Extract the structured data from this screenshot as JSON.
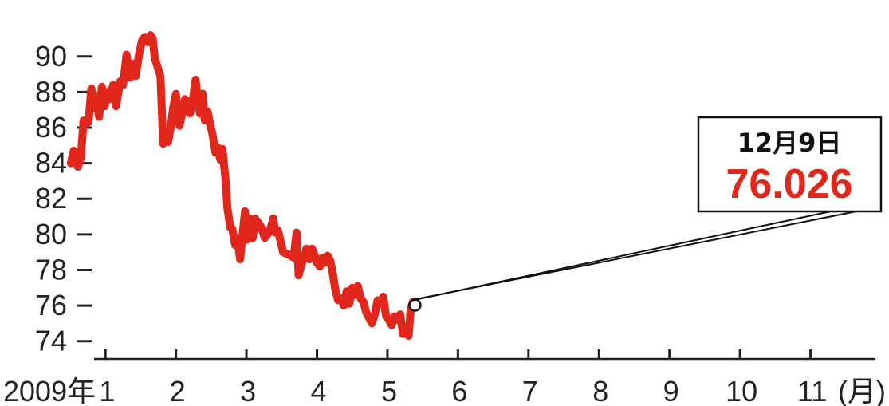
{
  "chart_data": {
    "type": "line",
    "title": "",
    "xlabel": "",
    "ylabel": "",
    "ylim": [
      73,
      92.5
    ],
    "y_ticks": [
      74,
      76,
      78,
      80,
      82,
      84,
      86,
      88,
      90
    ],
    "x_range": [
      0.5,
      12.0
    ],
    "x_ticks": [
      {
        "x": 1,
        "label": "1"
      },
      {
        "x": 2,
        "label": "2"
      },
      {
        "x": 3,
        "label": "3"
      },
      {
        "x": 4,
        "label": "4"
      },
      {
        "x": 5,
        "label": "5"
      },
      {
        "x": 6,
        "label": "6"
      },
      {
        "x": 7,
        "label": "7"
      },
      {
        "x": 8,
        "label": "8"
      },
      {
        "x": 9,
        "label": "9"
      },
      {
        "x": 10,
        "label": "10"
      },
      {
        "x": 11,
        "label": "11"
      }
    ],
    "year_label": "2009年",
    "unit_label": "(月)",
    "grid": false,
    "line_color": "#e1261c",
    "series": [
      {
        "points": [
          [
            0.51,
            84.0
          ],
          [
            0.55,
            84.7
          ],
          [
            0.58,
            84.3
          ],
          [
            0.61,
            83.8
          ],
          [
            0.65,
            84.3
          ],
          [
            0.69,
            86.4
          ],
          [
            0.76,
            86.3
          ],
          [
            0.8,
            88.2
          ],
          [
            0.84,
            87.1
          ],
          [
            0.87,
            87.8
          ],
          [
            0.91,
            86.6
          ],
          [
            0.95,
            88.3
          ],
          [
            0.99,
            87.2
          ],
          [
            1.02,
            88.0
          ],
          [
            1.06,
            87.6
          ],
          [
            1.11,
            88.4
          ],
          [
            1.15,
            87.2
          ],
          [
            1.21,
            88.6
          ],
          [
            1.25,
            88.4
          ],
          [
            1.3,
            90.1
          ],
          [
            1.35,
            88.8
          ],
          [
            1.4,
            89.6
          ],
          [
            1.43,
            88.9
          ],
          [
            1.48,
            90.2
          ],
          [
            1.52,
            90.9
          ],
          [
            1.56,
            91.1
          ],
          [
            1.6,
            90.8
          ],
          [
            1.64,
            91.2
          ],
          [
            1.67,
            91.0
          ],
          [
            1.7,
            89.9
          ],
          [
            1.74,
            89.4
          ],
          [
            1.78,
            88.9
          ],
          [
            1.82,
            85.1
          ],
          [
            1.86,
            85.6
          ],
          [
            1.89,
            85.2
          ],
          [
            1.93,
            86.1
          ],
          [
            1.96,
            87.1
          ],
          [
            2.0,
            87.9
          ],
          [
            2.05,
            86.1
          ],
          [
            2.09,
            86.8
          ],
          [
            2.13,
            87.6
          ],
          [
            2.17,
            87.4
          ],
          [
            2.2,
            86.8
          ],
          [
            2.24,
            87.6
          ],
          [
            2.28,
            88.7
          ],
          [
            2.31,
            87.6
          ],
          [
            2.34,
            86.8
          ],
          [
            2.38,
            87.9
          ],
          [
            2.41,
            86.4
          ],
          [
            2.45,
            86.9
          ],
          [
            2.48,
            86.3
          ],
          [
            2.52,
            85.6
          ],
          [
            2.56,
            84.6
          ],
          [
            2.59,
            84.9
          ],
          [
            2.63,
            84.2
          ],
          [
            2.66,
            84.8
          ],
          [
            2.7,
            83.2
          ],
          [
            2.73,
            81.5
          ],
          [
            2.77,
            80.4
          ],
          [
            2.8,
            80.3
          ],
          [
            2.84,
            79.4
          ],
          [
            2.87,
            79.8
          ],
          [
            2.91,
            78.6
          ],
          [
            2.94,
            79.8
          ],
          [
            2.98,
            81.3
          ],
          [
            3.01,
            79.7
          ],
          [
            3.05,
            80.9
          ],
          [
            3.09,
            79.8
          ],
          [
            3.12,
            80.9
          ],
          [
            3.16,
            80.7
          ],
          [
            3.21,
            80.4
          ],
          [
            3.26,
            79.8
          ],
          [
            3.3,
            80.0
          ],
          [
            3.34,
            80.3
          ],
          [
            3.38,
            80.9
          ],
          [
            3.41,
            80.1
          ],
          [
            3.45,
            80.2
          ],
          [
            3.49,
            79.5
          ],
          [
            3.52,
            79.0
          ],
          [
            3.58,
            78.9
          ],
          [
            3.63,
            78.8
          ],
          [
            3.67,
            78.7
          ],
          [
            3.71,
            80.1
          ],
          [
            3.74,
            77.7
          ],
          [
            3.78,
            78.3
          ],
          [
            3.82,
            78.7
          ],
          [
            3.85,
            79.2
          ],
          [
            3.89,
            78.6
          ],
          [
            3.93,
            79.2
          ],
          [
            3.96,
            78.9
          ],
          [
            4.0,
            78.4
          ],
          [
            4.04,
            78.2
          ],
          [
            4.08,
            78.7
          ],
          [
            4.11,
            78.4
          ],
          [
            4.15,
            78.8
          ],
          [
            4.19,
            78.5
          ],
          [
            4.22,
            77.9
          ],
          [
            4.26,
            76.9
          ],
          [
            4.3,
            76.3
          ],
          [
            4.34,
            76.4
          ],
          [
            4.38,
            76.0
          ],
          [
            4.42,
            76.8
          ],
          [
            4.46,
            76.1
          ],
          [
            4.5,
            77.0
          ],
          [
            4.54,
            76.6
          ],
          [
            4.58,
            77.1
          ],
          [
            4.62,
            76.4
          ],
          [
            4.66,
            76.2
          ],
          [
            4.7,
            75.6
          ],
          [
            4.74,
            75.3
          ],
          [
            4.78,
            75.0
          ],
          [
            4.82,
            75.5
          ],
          [
            4.86,
            76.3
          ],
          [
            4.9,
            76.1
          ],
          [
            4.94,
            76.5
          ],
          [
            4.98,
            75.4
          ],
          [
            5.02,
            75.2
          ],
          [
            5.06,
            74.9
          ],
          [
            5.1,
            75.4
          ],
          [
            5.14,
            75.2
          ],
          [
            5.18,
            75.5
          ],
          [
            5.22,
            74.4
          ],
          [
            5.26,
            74.5
          ],
          [
            5.3,
            74.3
          ],
          [
            5.33,
            75.8
          ],
          [
            5.36,
            76.2
          ],
          [
            5.39,
            76.026
          ]
        ]
      }
    ],
    "callout": {
      "date": "12月9日",
      "value": "76.026",
      "point": [
        5.39,
        76.026
      ]
    }
  }
}
